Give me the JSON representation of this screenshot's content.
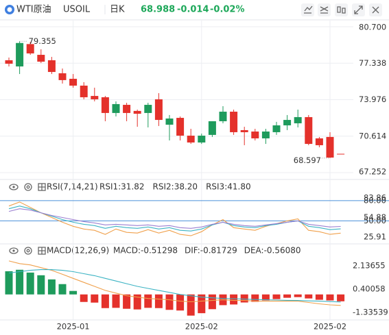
{
  "header": {
    "name": "WTI原油",
    "symbol": "USOIL",
    "period": "日K",
    "price": "68.988",
    "change": "-0.014",
    "change_pct": "-0.02%"
  },
  "chart_data": [
    {
      "type": "candlestick",
      "up_color": "#1e9b5c",
      "down_color": "#e4312b",
      "ylim": [
        67.252,
        80.7
      ],
      "yticks": [
        {
          "value": 80.7,
          "label": "80.700"
        },
        77.338,
        73.976,
        70.614,
        67.252
      ],
      "grid": true,
      "categories": [
        null,
        null,
        null,
        null,
        null,
        null,
        "2025-01",
        null,
        null,
        null,
        null,
        null,
        null,
        null,
        null,
        null,
        null,
        null,
        "2025-02",
        null,
        null,
        null,
        null,
        null,
        null,
        null,
        null,
        null,
        null,
        null,
        "2025-02",
        null
      ],
      "values": [
        [
          77.61,
          77.86,
          77.04,
          77.29
        ],
        [
          77.04,
          79.355,
          76.34,
          79.2
        ],
        [
          79.1,
          79.3,
          78.11,
          78.24
        ],
        [
          78.11,
          78.62,
          77.35,
          77.48
        ],
        [
          77.61,
          77.92,
          76.34,
          76.53
        ],
        [
          76.41,
          76.85,
          75.46,
          75.78
        ],
        [
          75.9,
          76.34,
          75.08,
          75.27
        ],
        [
          75.27,
          75.59,
          74.01,
          74.2
        ],
        [
          74.32,
          75.08,
          73.82,
          74.01
        ],
        [
          74.2,
          74.32,
          71.99,
          72.75
        ],
        [
          72.75,
          73.82,
          72.43,
          73.57
        ],
        [
          73.5,
          73.69,
          71.99,
          72.75
        ],
        [
          72.94,
          73.06,
          71.48,
          72.68
        ],
        [
          72.75,
          73.69,
          71.42,
          73.5
        ],
        [
          74.01,
          74.58,
          71.55,
          72.11
        ],
        [
          71.67,
          72.56,
          70.22,
          72.24
        ],
        [
          72.3,
          72.43,
          70.22,
          70.66
        ],
        [
          70.66,
          71.29,
          69.9,
          70.03
        ],
        [
          70.03,
          70.85,
          69.9,
          70.66
        ],
        [
          70.73,
          71.99,
          70.54,
          71.99
        ],
        [
          71.99,
          73.38,
          71.8,
          72.87
        ],
        [
          72.87,
          73.06,
          70.73,
          70.98
        ],
        [
          71.17,
          71.48,
          69.78,
          70.98
        ],
        [
          71.04,
          71.29,
          70.22,
          70.41
        ],
        [
          70.41,
          71.29,
          69.9,
          71.04
        ],
        [
          70.98,
          71.93,
          70.73,
          71.61
        ],
        [
          71.61,
          72.56,
          71.17,
          72.11
        ],
        [
          71.8,
          73.06,
          71.42,
          72.37
        ],
        [
          72.37,
          72.56,
          69.78,
          69.9
        ],
        [
          70.41,
          70.54,
          69.59,
          69.78
        ],
        [
          70.54,
          70.98,
          68.597,
          68.64
        ],
        [
          68.988,
          68.988,
          68.988,
          68.988
        ]
      ]
    },
    {
      "type": "line",
      "title": "RSI(7,14,21)",
      "ylim": [
        20,
        90
      ],
      "yticks": [
        {
          "value": 80,
          "label": "80.00"
        },
        83.86,
        54.88,
        {
          "value": 50,
          "label": "50.00"
        },
        25.91
      ],
      "hlines": [
        80,
        50
      ],
      "hline_color": "#4a90d9",
      "series": [
        {
          "name": "RSI1:31.82",
          "color": "#f0a04b",
          "values": [
            72,
            78,
            70,
            62,
            55,
            48,
            42,
            38,
            36,
            30,
            38,
            33,
            32,
            37,
            32,
            36,
            30,
            28,
            34,
            44,
            52,
            40,
            38,
            36,
            42,
            46,
            50,
            53,
            36,
            34,
            30,
            31.82
          ]
        },
        {
          "name": "RSI2:38.20",
          "color": "#3bb3c3",
          "values": [
            68,
            72,
            68,
            62,
            57,
            52,
            48,
            45,
            43,
            39,
            42,
            40,
            39,
            41,
            38,
            40,
            36,
            35,
            38,
            44,
            48,
            43,
            41,
            40,
            43,
            45,
            48,
            50,
            42,
            40,
            37,
            38.2
          ]
        },
        {
          "name": "RSI3:41.80",
          "color": "#9b7fd1",
          "values": [
            64,
            68,
            66,
            62,
            58,
            55,
            52,
            49,
            47,
            44,
            45,
            44,
            43,
            44,
            42,
            43,
            40,
            39,
            41,
            45,
            48,
            45,
            43,
            42,
            44,
            46,
            48,
            50,
            45,
            43,
            41,
            41.8
          ]
        }
      ]
    },
    {
      "type": "macd",
      "title": "MACD(12,26,9)",
      "ylim": [
        -1.8,
        2.8
      ],
      "yticks": [
        2.13655,
        0.40058,
        -1.33539
      ],
      "series": [
        {
          "name": "MACD:-0.51298",
          "color": "#9b7fd1",
          "kind": "bar",
          "up_color": "#1e9b5c",
          "down_color": "#e4312b",
          "values": [
            1.73,
            1.84,
            1.63,
            1.43,
            1.12,
            0.77,
            0.26,
            -0.56,
            -0.61,
            -1.02,
            -1.0,
            -1.07,
            -1.12,
            -1.0,
            -1.02,
            -1.15,
            -1.2,
            -1.58,
            -1.4,
            -1.1,
            -0.8,
            -0.75,
            -0.6,
            -0.55,
            -0.45,
            -0.35,
            -0.25,
            -0.2,
            -0.3,
            -0.4,
            -0.45,
            -0.51298
          ]
        },
        {
          "name": "DIF:-0.81729",
          "color": "#f0a04b",
          "kind": "line",
          "values": [
            2.5,
            2.3,
            2.2,
            2.0,
            1.8,
            1.5,
            1.2,
            0.9,
            0.6,
            0.3,
            0.1,
            -0.1,
            -0.2,
            -0.3,
            -0.35,
            -0.4,
            -0.5,
            -0.55,
            -0.5,
            -0.45,
            -0.4,
            -0.45,
            -0.45,
            -0.5,
            -0.5,
            -0.5,
            -0.5,
            -0.5,
            -0.6,
            -0.7,
            -0.78,
            -0.81729
          ]
        },
        {
          "name": "DEA:-0.56080",
          "color": "#3bb3c3",
          "kind": "line",
          "values": [
            1.6,
            1.7,
            1.8,
            1.85,
            1.85,
            1.8,
            1.7,
            1.55,
            1.4,
            1.2,
            1.0,
            0.8,
            0.6,
            0.45,
            0.3,
            0.15,
            0.0,
            -0.1,
            -0.2,
            -0.25,
            -0.3,
            -0.32,
            -0.35,
            -0.38,
            -0.4,
            -0.42,
            -0.44,
            -0.45,
            -0.48,
            -0.5,
            -0.53,
            -0.5608
          ]
        }
      ]
    }
  ]
}
